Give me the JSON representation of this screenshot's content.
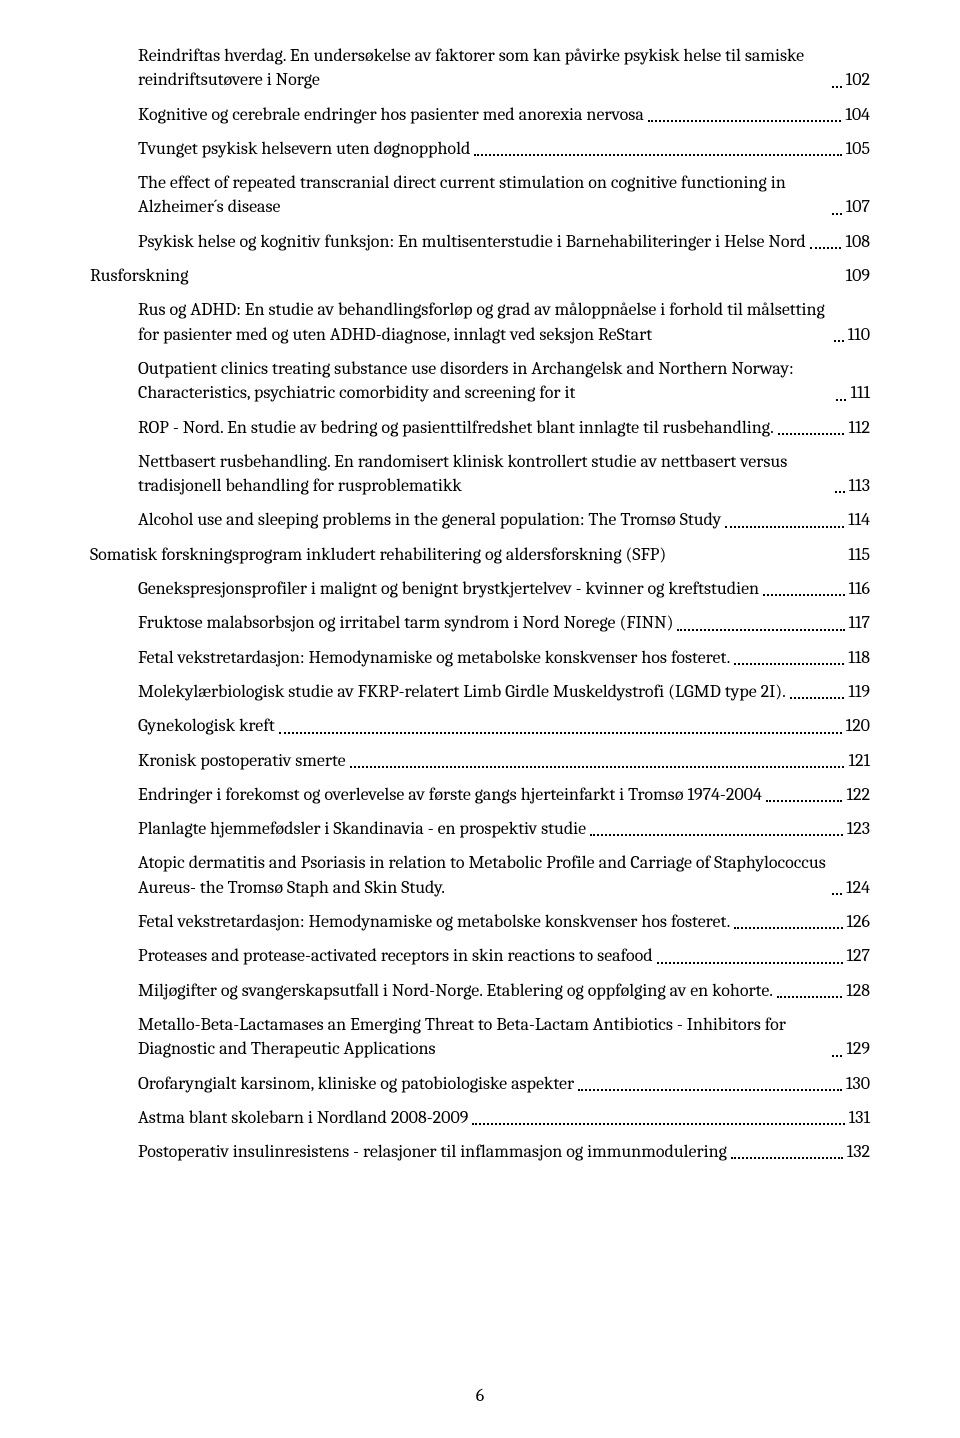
{
  "page_number": "6",
  "toc": [
    {
      "level": 1,
      "title": "Reindriftas hverdag. En undersøkelse av faktorer som kan påvirke psykisk helse til samiske reindriftsutøvere i Norge",
      "page": "102",
      "leader": true
    },
    {
      "level": 1,
      "title": "Kognitive og cerebrale endringer hos pasienter med anorexia nervosa",
      "page": "104",
      "leader": true
    },
    {
      "level": 1,
      "title": "Tvunget psykisk helsevern uten døgnopphold",
      "page": "105",
      "leader": true
    },
    {
      "level": 1,
      "title": "The effect of repeated transcranial direct current stimulation on cognitive functioning in Alzheimer´s disease",
      "page": "107",
      "leader": true
    },
    {
      "level": 1,
      "title": "Psykisk helse og kognitiv funksjon: En multisenterstudie i Barnehabiliteringer i Helse Nord",
      "page": "108",
      "leader": true
    },
    {
      "level": 0,
      "title": "Rusforskning",
      "page": "109",
      "leader": false
    },
    {
      "level": 1,
      "title": "Rus og ADHD: En studie av behandlingsforløp og grad av måloppnåelse i forhold til målsetting for pasienter med og uten ADHD-diagnose, innlagt ved seksjon ReStart",
      "page": "110",
      "leader": true
    },
    {
      "level": 1,
      "title": "Outpatient clinics treating substance use disorders in Archangelsk and Northern Norway: Characteristics, psychiatric comorbidity and screening for it",
      "page": "111",
      "leader": true
    },
    {
      "level": 1,
      "title": "ROP - Nord. En studie av bedring og pasienttilfredshet blant innlagte til rusbehandling.",
      "page": "112",
      "leader": true
    },
    {
      "level": 1,
      "title": "Nettbasert rusbehandling. En randomisert klinisk kontrollert studie av nettbasert versus tradisjonell behandling for rusproblematikk",
      "page": "113",
      "leader": true
    },
    {
      "level": 1,
      "title": "Alcohol use and sleeping problems in the general population: The Tromsø Study",
      "page": "114",
      "leader": true
    },
    {
      "level": 0,
      "title": "Somatisk forskningsprogram inkludert rehabilitering og aldersforskning (SFP)",
      "page": "115",
      "leader": false
    },
    {
      "level": 1,
      "title": "Genekspresjonsprofiler i malignt og benignt brystkjertelvev - kvinner og kreftstudien",
      "page": "116",
      "leader": true
    },
    {
      "level": 1,
      "title": "Fruktose malabsorbsjon og irritabel tarm syndrom i Nord Norege (FINN)",
      "page": "117",
      "leader": true
    },
    {
      "level": 1,
      "title": "Fetal vekstretardasjon: Hemodynamiske og metabolske konskvenser hos fosteret.",
      "page": "118",
      "leader": true
    },
    {
      "level": 1,
      "title": "Molekylærbiologisk studie av FKRP-relatert Limb Girdle Muskeldystrofi (LGMD type 2I).",
      "page": "119",
      "leader": true
    },
    {
      "level": 1,
      "title": "Gynekologisk kreft",
      "page": "120",
      "leader": true
    },
    {
      "level": 1,
      "title": "Kronisk postoperativ smerte",
      "page": "121",
      "leader": true
    },
    {
      "level": 1,
      "title": "Endringer i forekomst og overlevelse av første gangs hjerteinfarkt i Tromsø 1974-2004",
      "page": "122",
      "leader": true
    },
    {
      "level": 1,
      "title": "Planlagte hjemmefødsler i Skandinavia - en prospektiv studie",
      "page": "123",
      "leader": true
    },
    {
      "level": 1,
      "title": "Atopic dermatitis and Psoriasis in relation to Metabolic Profile and Carriage of Staphylococcus Aureus- the Tromsø Staph and Skin Study.",
      "page": "124",
      "leader": true
    },
    {
      "level": 1,
      "title": "Fetal vekstretardasjon: Hemodynamiske og metabolske konskvenser hos fosteret.",
      "page": "126",
      "leader": true
    },
    {
      "level": 1,
      "title": "Proteases and protease-activated receptors in skin reactions to seafood",
      "page": "127",
      "leader": true
    },
    {
      "level": 1,
      "title": "Miljøgifter og svangerskapsutfall i Nord-Norge. Etablering og oppfølging av en kohorte.",
      "page": "128",
      "leader": true
    },
    {
      "level": 1,
      "title": "Metallo-Beta-Lactamases an Emerging Threat to Beta-Lactam Antibiotics - Inhibitors for Diagnostic and Therapeutic Applications",
      "page": "129",
      "leader": true
    },
    {
      "level": 1,
      "title": "Orofaryngialt karsinom, kliniske og patobiologiske aspekter",
      "page": "130",
      "leader": true
    },
    {
      "level": 1,
      "title": "Astma blant skolebarn i Nordland 2008-2009",
      "page": "131",
      "leader": true
    },
    {
      "level": 1,
      "title": "Postoperativ insulinresistens - relasjoner til inflammasjon og immunmodulering",
      "page": "132",
      "leader": true
    }
  ]
}
